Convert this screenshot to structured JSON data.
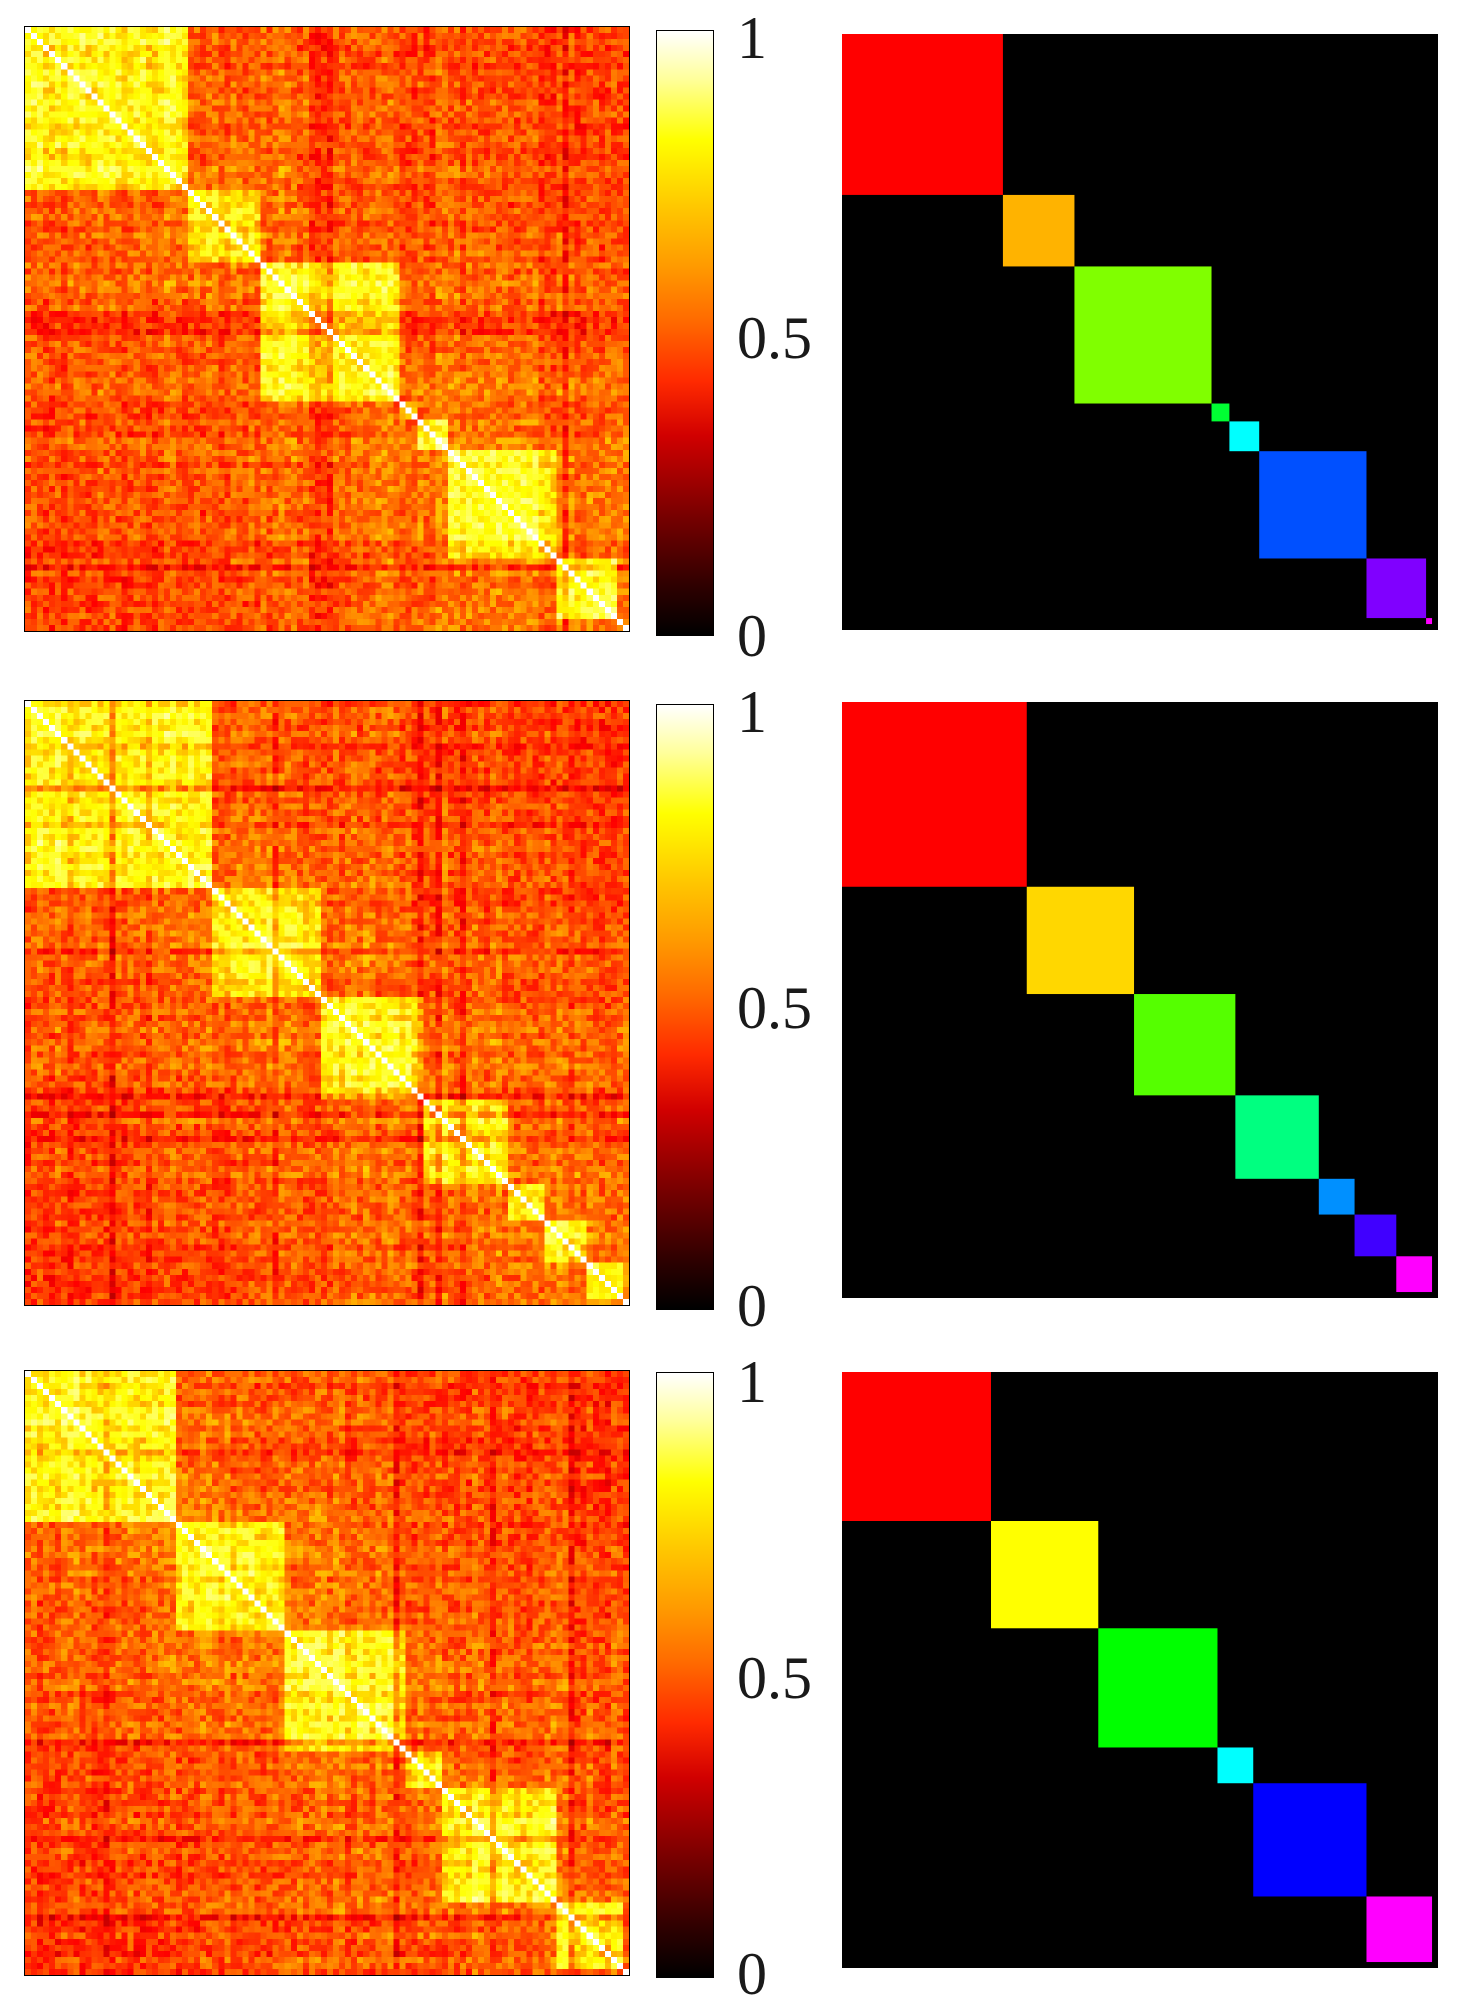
{
  "chart_data": [
    {
      "type": "heatmap",
      "matrix_size": 100,
      "colormap": "hot",
      "value_range": [
        0,
        1
      ],
      "colorbar_ticks": [
        "0",
        "0.5",
        "1"
      ],
      "diagonal_value": 1,
      "cluster_blocks": [
        {
          "start": 0,
          "size": 27,
          "color": "#ff0000"
        },
        {
          "start": 27,
          "size": 12,
          "color": "#ffb300"
        },
        {
          "start": 39,
          "size": 23,
          "color": "#80ff00"
        },
        {
          "start": 62,
          "size": 3,
          "color": "#00ff33"
        },
        {
          "start": 65,
          "size": 5,
          "color": "#00ffff"
        },
        {
          "start": 70,
          "size": 18,
          "color": "#0050ff"
        },
        {
          "start": 88,
          "size": 10,
          "color": "#8000ff"
        },
        {
          "start": 98,
          "size": 1,
          "color": "#ff00ff"
        }
      ]
    },
    {
      "type": "heatmap",
      "matrix_size": 100,
      "colormap": "hot",
      "value_range": [
        0,
        1
      ],
      "colorbar_ticks": [
        "0",
        "0.5",
        "1"
      ],
      "diagonal_value": 1,
      "cluster_blocks": [
        {
          "start": 0,
          "size": 31,
          "color": "#ff0000"
        },
        {
          "start": 31,
          "size": 18,
          "color": "#ffd700"
        },
        {
          "start": 49,
          "size": 17,
          "color": "#55ff00"
        },
        {
          "start": 66,
          "size": 14,
          "color": "#00ff80"
        },
        {
          "start": 80,
          "size": 6,
          "color": "#0090ff"
        },
        {
          "start": 86,
          "size": 7,
          "color": "#4000ff"
        },
        {
          "start": 93,
          "size": 6,
          "color": "#ff00ff"
        }
      ]
    },
    {
      "type": "heatmap",
      "matrix_size": 100,
      "colormap": "hot",
      "value_range": [
        0,
        1
      ],
      "colorbar_ticks": [
        "0",
        "0.5",
        "1"
      ],
      "diagonal_value": 1,
      "cluster_blocks": [
        {
          "start": 0,
          "size": 25,
          "color": "#ff0000"
        },
        {
          "start": 25,
          "size": 18,
          "color": "#ffff00"
        },
        {
          "start": 43,
          "size": 20,
          "color": "#00ff00"
        },
        {
          "start": 63,
          "size": 6,
          "color": "#00ffff"
        },
        {
          "start": 69,
          "size": 19,
          "color": "#0000ff"
        },
        {
          "start": 88,
          "size": 11,
          "color": "#ff00ff"
        }
      ]
    }
  ]
}
